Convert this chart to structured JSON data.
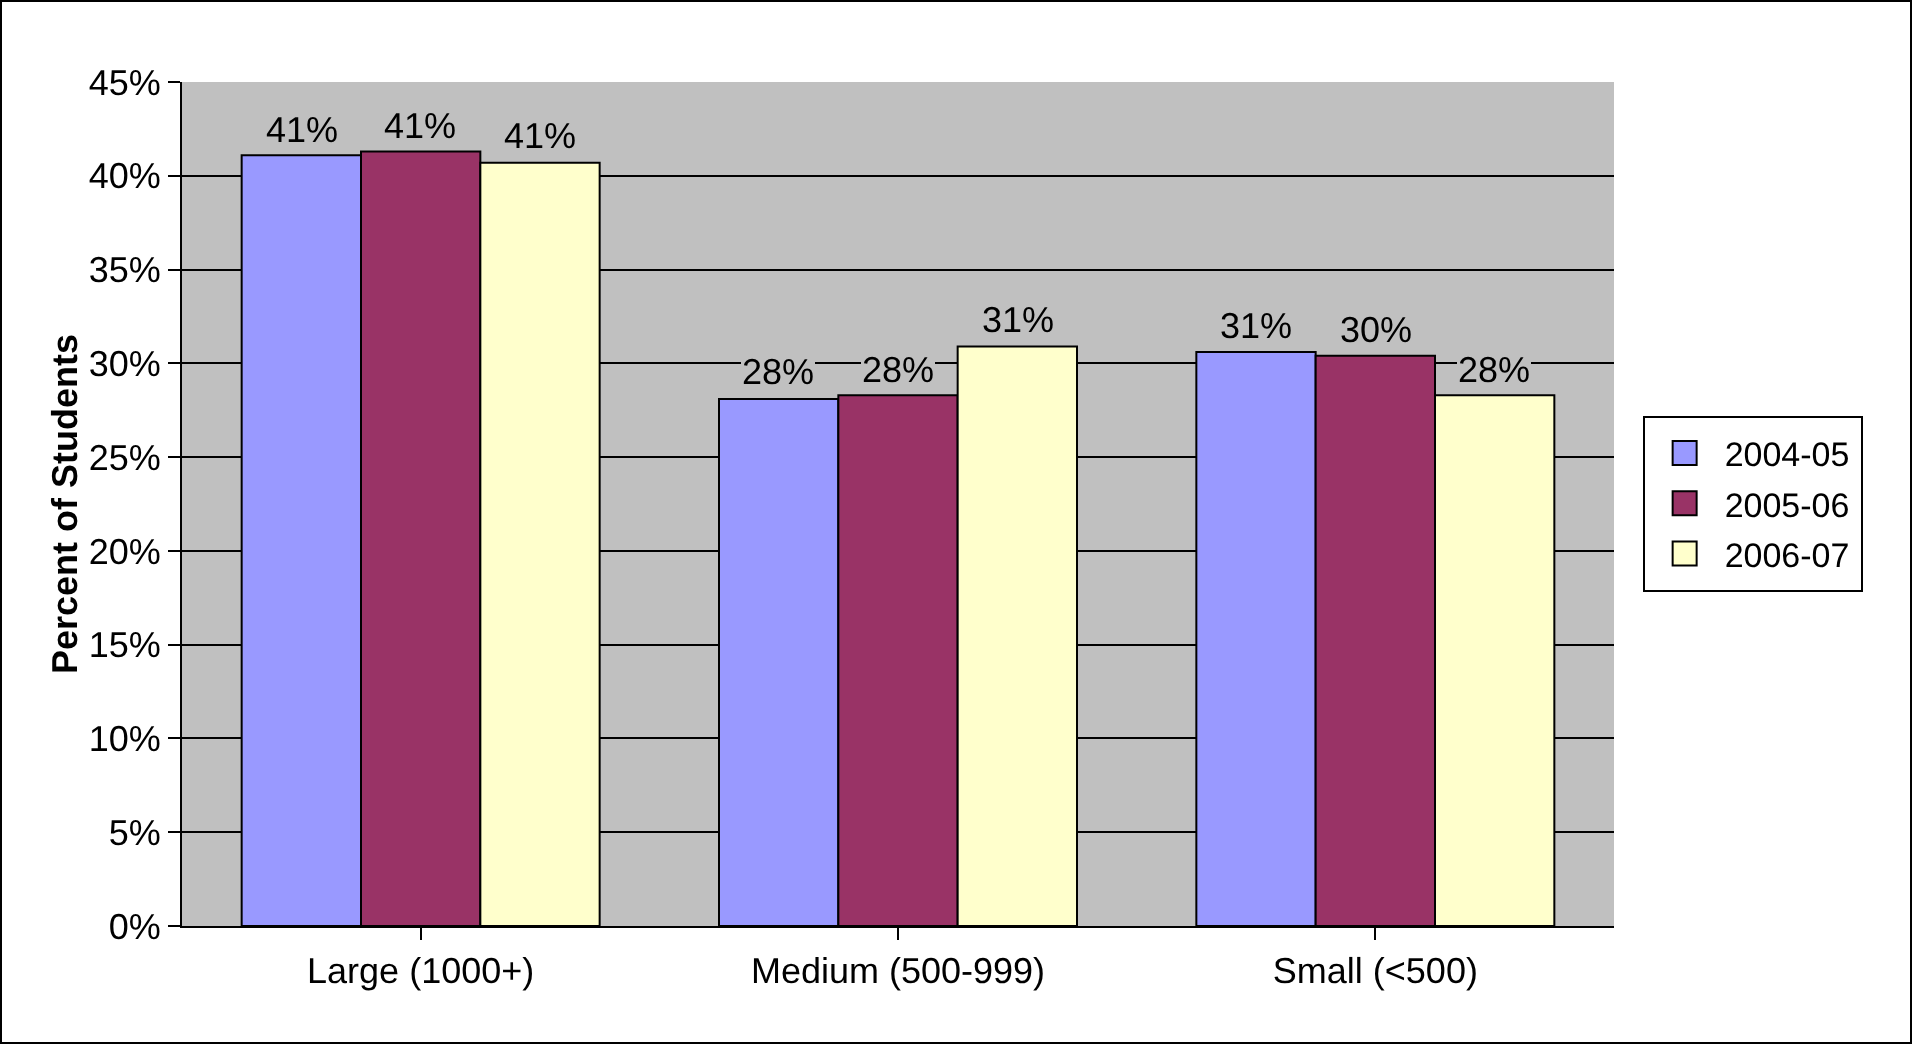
{
  "chart_data": {
    "type": "bar",
    "ylabel": "Percent of Students",
    "categories": [
      "Large (1000+)",
      "Medium (500-999)",
      "Small (<500)"
    ],
    "series": [
      {
        "name": "2004-05",
        "color": "#9999ff",
        "values": [
          41.1,
          28.1,
          30.6
        ],
        "value_labels": [
          "41%",
          "28%",
          "31%"
        ]
      },
      {
        "name": "2005-06",
        "color": "#993366",
        "values": [
          41.3,
          28.3,
          30.4
        ],
        "value_labels": [
          "41%",
          "28%",
          "30%"
        ]
      },
      {
        "name": "2006-07",
        "color": "#ffffcc",
        "values": [
          40.7,
          30.9,
          28.3
        ],
        "value_labels": [
          "41%",
          "31%",
          "28%"
        ]
      }
    ],
    "ylim": [
      0,
      45
    ],
    "yticks": [
      {
        "value": 0,
        "label": "0%"
      },
      {
        "value": 5,
        "label": "5%"
      },
      {
        "value": 10,
        "label": "10%"
      },
      {
        "value": 15,
        "label": "15%"
      },
      {
        "value": 20,
        "label": "20%"
      },
      {
        "value": 25,
        "label": "25%"
      },
      {
        "value": 30,
        "label": "30%"
      },
      {
        "value": 35,
        "label": "35%"
      },
      {
        "value": 40,
        "label": "40%"
      },
      {
        "value": 45,
        "label": "45%"
      }
    ],
    "grid": "y",
    "legend": "right"
  }
}
